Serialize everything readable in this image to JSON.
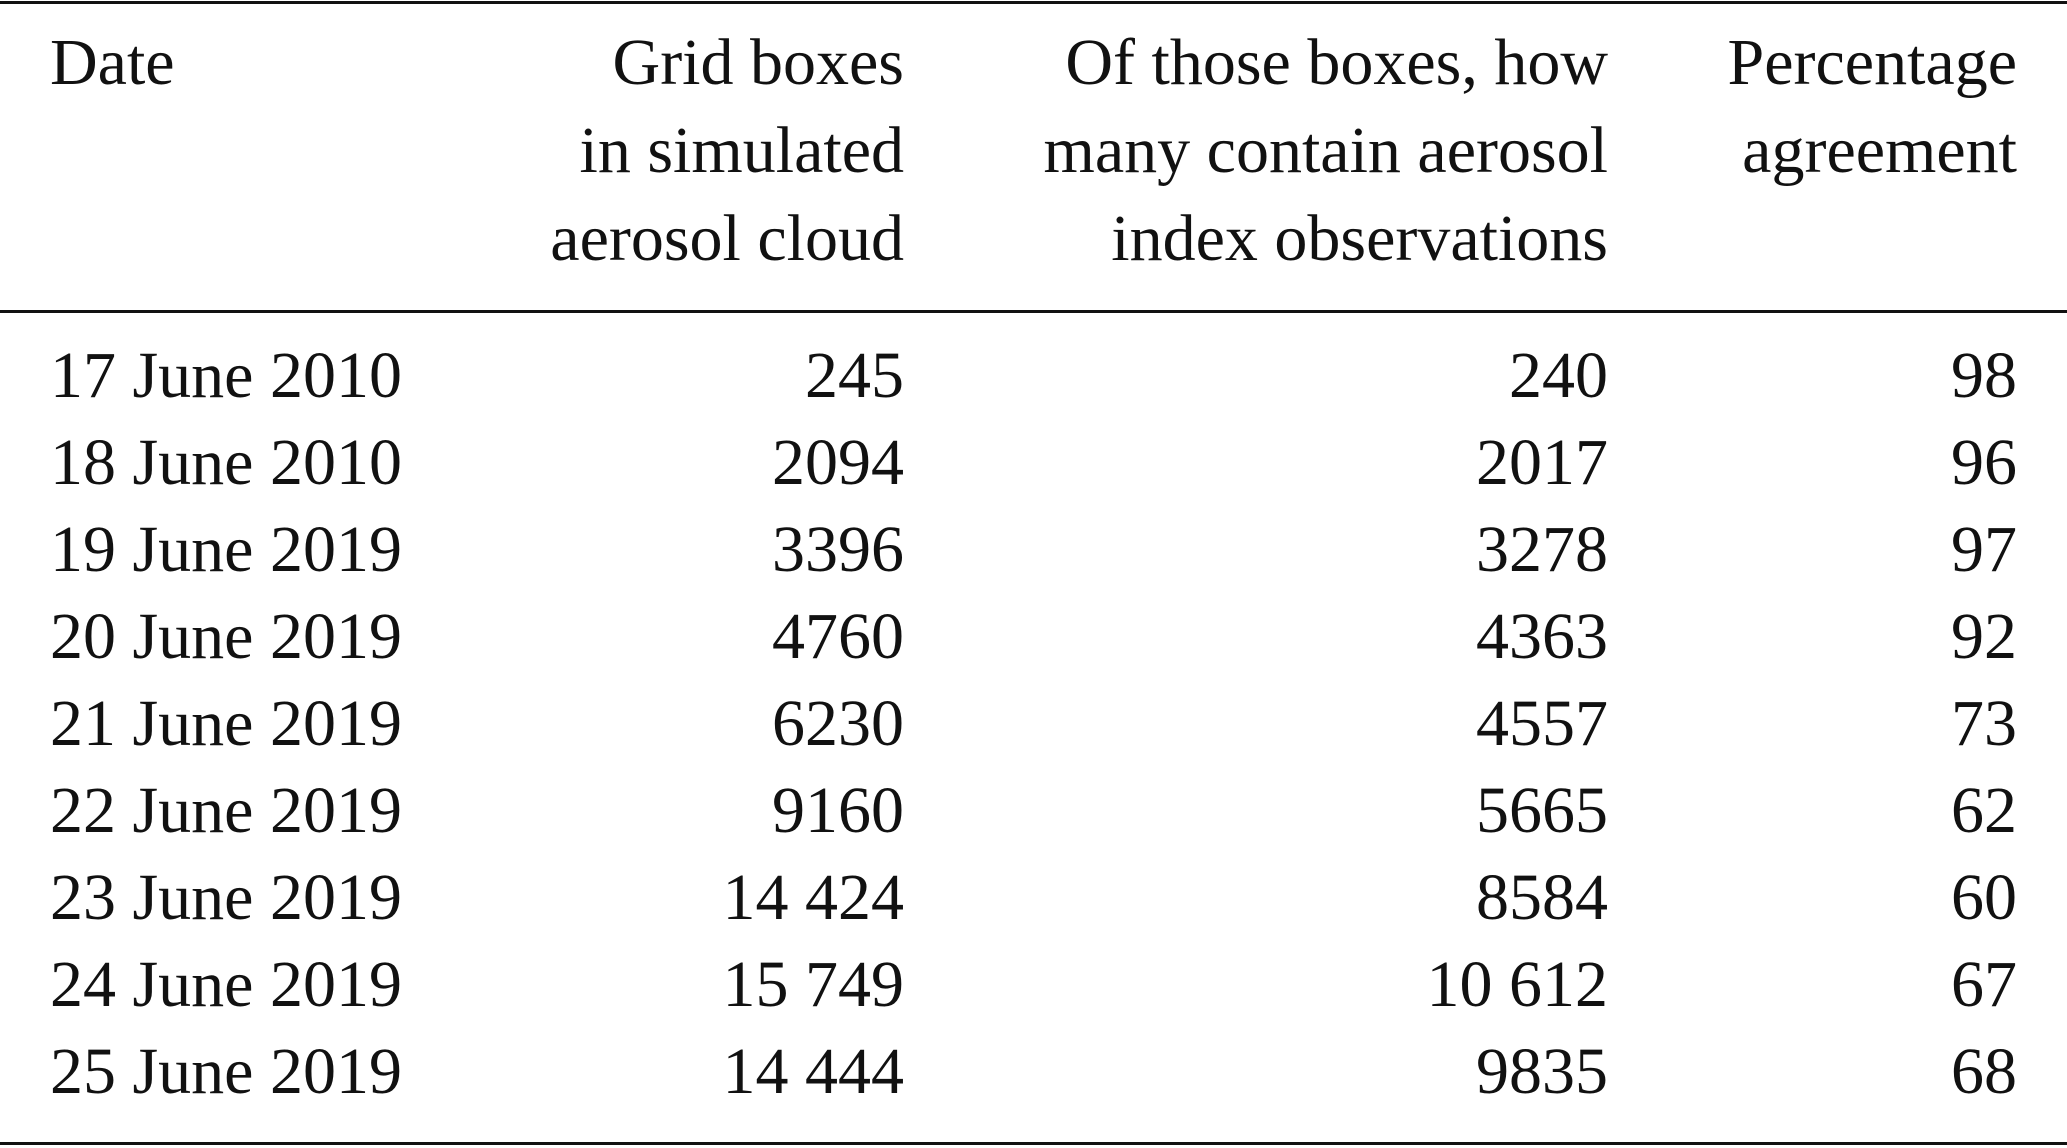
{
  "table": {
    "header": [
      [
        "Date"
      ],
      [
        "Grid boxes",
        "in simulated",
        "aerosol cloud"
      ],
      [
        "Of those boxes, how",
        "many contain aerosol",
        "index observations"
      ],
      [
        "Percentage",
        "agreement"
      ]
    ],
    "rows": [
      [
        "17 June 2010",
        "245",
        "240",
        "98"
      ],
      [
        "18 June 2010",
        "2094",
        "2017",
        "96"
      ],
      [
        "19 June 2019",
        "3396",
        "3278",
        "97"
      ],
      [
        "20 June 2019",
        "4760",
        "4363",
        "92"
      ],
      [
        "21 June 2019",
        "6230",
        "4557",
        "73"
      ],
      [
        "22 June 2019",
        "9160",
        "5665",
        "62"
      ],
      [
        "23 June 2019",
        "14 424",
        "8584",
        "60"
      ],
      [
        "24 June 2019",
        "15 749",
        "10 612",
        "67"
      ],
      [
        "25 June 2019",
        "14 444",
        "9835",
        "68"
      ]
    ]
  }
}
